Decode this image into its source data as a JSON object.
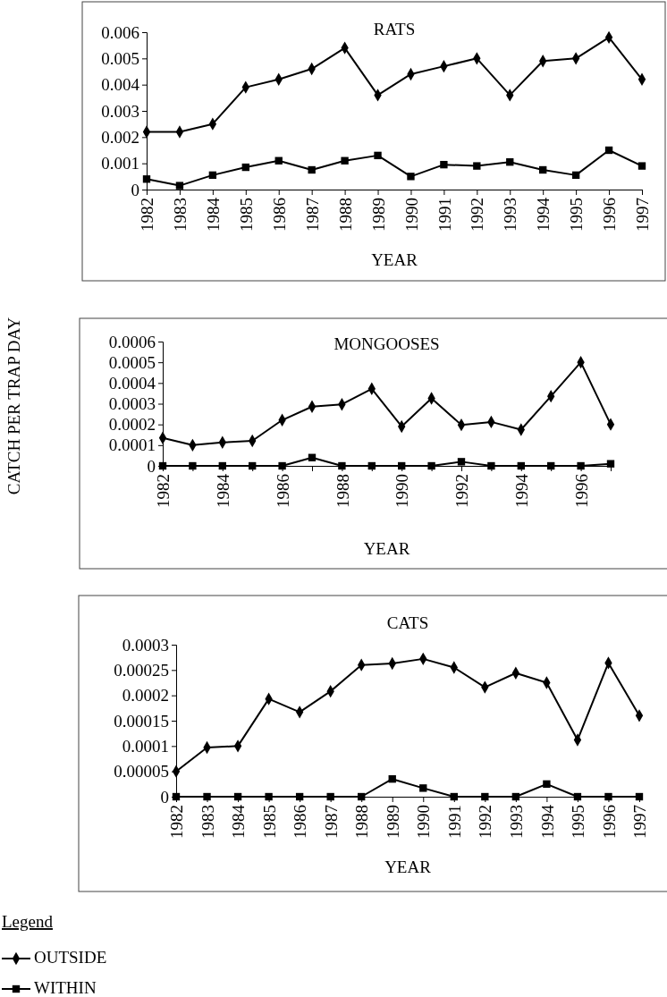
{
  "chart_data": [
    {
      "type": "line",
      "title": "RATS",
      "xlabel": "YEAR",
      "categories": [
        "1982",
        "1983",
        "1984",
        "1985",
        "1986",
        "1987",
        "1988",
        "1989",
        "1990",
        "1991",
        "1992",
        "1993",
        "1994",
        "1995",
        "1996",
        "1997"
      ],
      "ylim": [
        0,
        0.006
      ],
      "yticks": [
        0,
        0.001,
        0.002,
        0.003,
        0.004,
        0.005,
        0.006
      ],
      "grid": false,
      "legend": false,
      "series": [
        {
          "color": "#000000",
          "marker": "diamond",
          "values": [
            0.0022,
            0.0022,
            0.0025,
            0.0039,
            0.0042,
            0.0046,
            0.0054,
            0.0036,
            0.0044,
            0.0047,
            0.005,
            0.0036,
            0.0049,
            0.005,
            0.0058,
            0.0042
          ]
        },
        {
          "color": "#000000",
          "marker": "square",
          "values": [
            0.0004,
            0.00015,
            0.00055,
            0.00085,
            0.0011,
            0.00075,
            0.0011,
            0.0013,
            0.0005,
            0.00095,
            0.0009,
            0.00105,
            0.00075,
            0.00055,
            0.0015,
            0.0009
          ]
        }
      ]
    },
    {
      "type": "line",
      "title": "MONGOOSES",
      "xlabel": "YEAR",
      "ylabel": "CATCH PER TRAP DAY",
      "categories": [
        "1982",
        null,
        "1984",
        null,
        "1986",
        null,
        "1988",
        null,
        "1990",
        null,
        "1992",
        null,
        "1994",
        null,
        "1996",
        null
      ],
      "ylim": [
        0,
        0.0006
      ],
      "yticks": [
        0,
        0.0001,
        0.0002,
        0.0003,
        0.0004,
        0.0005,
        0.0006
      ],
      "grid": false,
      "legend": false,
      "series": [
        {
          "color": "#000000",
          "marker": "diamond",
          "values": [
            0.000135,
            0.0001,
            0.000113,
            0.000121,
            0.000221,
            0.000286,
            0.000297,
            0.000372,
            0.00019,
            0.000326,
            0.000198,
            0.000212,
            0.000175,
            0.000336,
            0.0005,
            0.0002
          ]
        },
        {
          "color": "#000000",
          "marker": "square",
          "values": [
            0,
            0,
            0,
            0,
            0,
            4e-05,
            0,
            0,
            0,
            0,
            2e-05,
            0,
            0,
            0,
            0,
            1e-05
          ]
        }
      ]
    },
    {
      "type": "line",
      "title": "CATS",
      "xlabel": "YEAR",
      "categories": [
        "1982",
        "1983",
        "1984",
        "1985",
        "1986",
        "1987",
        "1988",
        "1989",
        "1990",
        "1991",
        "1992",
        "1993",
        "1994",
        "1995",
        "1996",
        "1997"
      ],
      "ylim": [
        0,
        0.0003
      ],
      "yticks": [
        0,
        {
          "value": 5e-05,
          "label": "0.00005"
        },
        0.0001,
        0.00015,
        0.0002,
        0.00025,
        0.0003
      ],
      "grid": false,
      "legend": "bottom left",
      "legend_title": "Legend",
      "series": [
        {
          "name": "OUTSIDE",
          "color": "#000000",
          "marker": "diamond",
          "values": [
            5e-05,
            9.7e-05,
            0.0001,
            0.000193,
            0.000167,
            0.000208,
            0.00026,
            0.000263,
            0.000272,
            0.000255,
            0.000216,
            0.000244,
            0.000225,
            0.000112,
            0.000264,
            0.00016
          ]
        },
        {
          "name": "WITHIN",
          "color": "#000000",
          "marker": "square",
          "values": [
            0,
            0,
            0,
            0,
            0,
            0,
            0,
            3.5e-05,
            1.7e-05,
            0,
            0,
            0,
            2.5e-05,
            0,
            0,
            0
          ]
        }
      ]
    }
  ]
}
